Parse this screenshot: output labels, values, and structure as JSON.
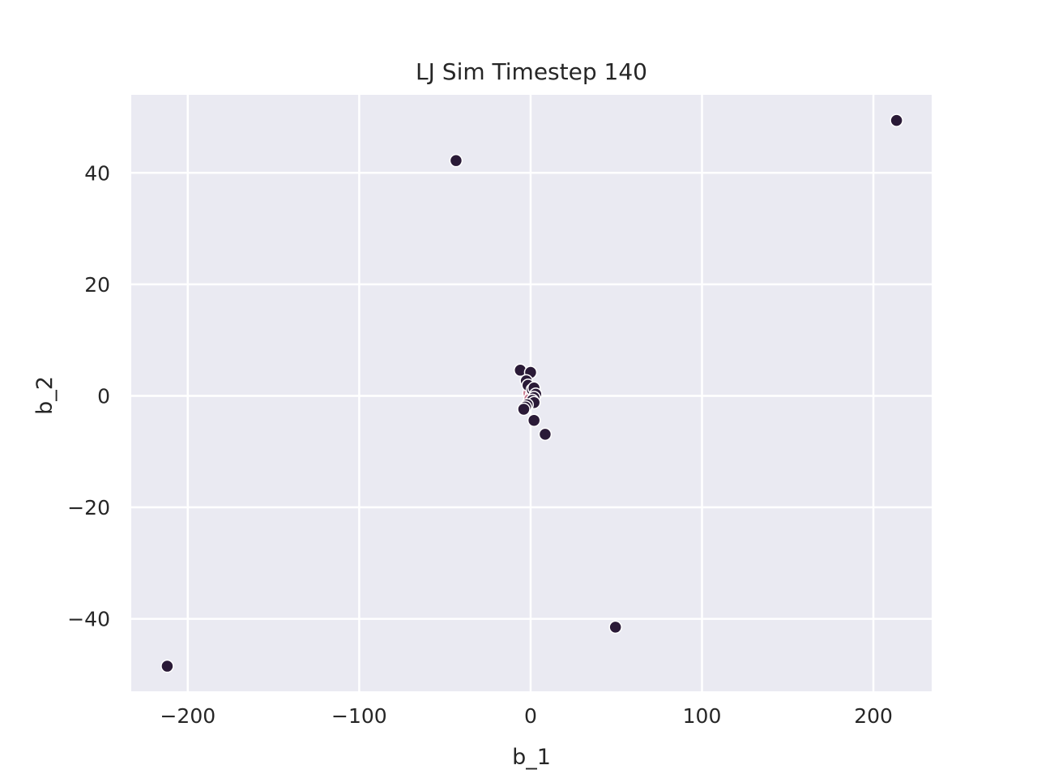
{
  "chart_data": {
    "type": "scatter",
    "title": "LJ Sim Timestep 140",
    "xlabel": "b_1",
    "ylabel": "b_2",
    "xlim": [
      -233,
      234
    ],
    "ylim": [
      -53,
      54
    ],
    "xticks": [
      -200,
      -100,
      0,
      100,
      200
    ],
    "yticks": [
      -40,
      -20,
      0,
      20,
      40
    ],
    "xtick_labels": [
      "−200",
      "−100",
      "0",
      "100",
      "200"
    ],
    "ytick_labels": [
      "−40",
      "−20",
      "0",
      "20",
      "40"
    ],
    "grid": true,
    "legend": "none",
    "colors": {
      "plot_background": "#eaeaf2",
      "grid": "#ffffff",
      "point_fill": "#2a1a37",
      "point_fill_inner": "#c6768d",
      "point_edge": "#ffffff",
      "text": "#262626"
    },
    "points": [
      {
        "x": -212.0,
        "y": -48.5
      },
      {
        "x": -43.5,
        "y": 42.2
      },
      {
        "x": 213.5,
        "y": 49.4
      },
      {
        "x": 49.5,
        "y": -41.5
      },
      {
        "x": -6.0,
        "y": 4.6
      },
      {
        "x": 0.0,
        "y": 4.2
      },
      {
        "x": -2.5,
        "y": 2.7
      },
      {
        "x": -1.5,
        "y": 1.9
      },
      {
        "x": 1.0,
        "y": 1.1
      },
      {
        "x": 2.0,
        "y": 1.4
      },
      {
        "x": 3.0,
        "y": 0.3
      },
      {
        "x": 2.0,
        "y": -0.3
      },
      {
        "x": 1.0,
        "y": -0.8
      },
      {
        "x": 2.0,
        "y": -1.2
      },
      {
        "x": -2.0,
        "y": -1.6
      },
      {
        "x": -3.0,
        "y": -2.0
      },
      {
        "x": -4.0,
        "y": -2.4
      },
      {
        "x": 2.0,
        "y": -4.4
      },
      {
        "x": 8.5,
        "y": -6.9
      }
    ],
    "inner_points": [
      {
        "x": -1.0,
        "y": 0.5
      },
      {
        "x": 1.5,
        "y": -1.0
      },
      {
        "x": 0.5,
        "y": 0.2
      },
      {
        "x": -0.5,
        "y": -0.6
      }
    ]
  }
}
